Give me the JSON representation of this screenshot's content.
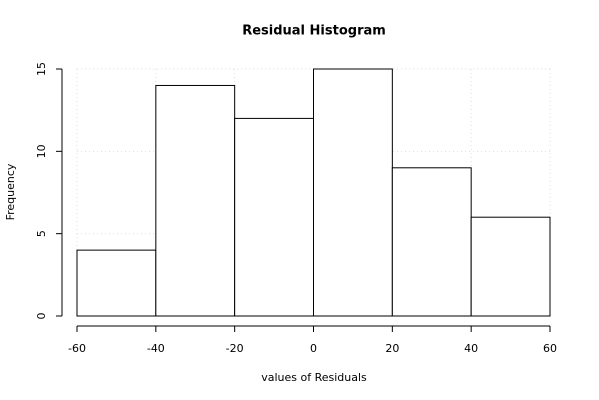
{
  "chart_data": {
    "type": "histogram",
    "title": "Residual Histogram",
    "x_label": "values of Residuals",
    "y_label": "Frequency",
    "bins": [
      -60,
      -40,
      -20,
      0,
      20,
      40,
      60
    ],
    "values": [
      4,
      14,
      12,
      15,
      9,
      6
    ],
    "color": "#ffffff",
    "xlim": [
      -60,
      60
    ],
    "xticks": [
      -60,
      -40,
      -20,
      0,
      20,
      40,
      60
    ],
    "ylim": [
      0,
      15
    ],
    "yticks": [
      0,
      5,
      10,
      15
    ],
    "grid": true
  }
}
